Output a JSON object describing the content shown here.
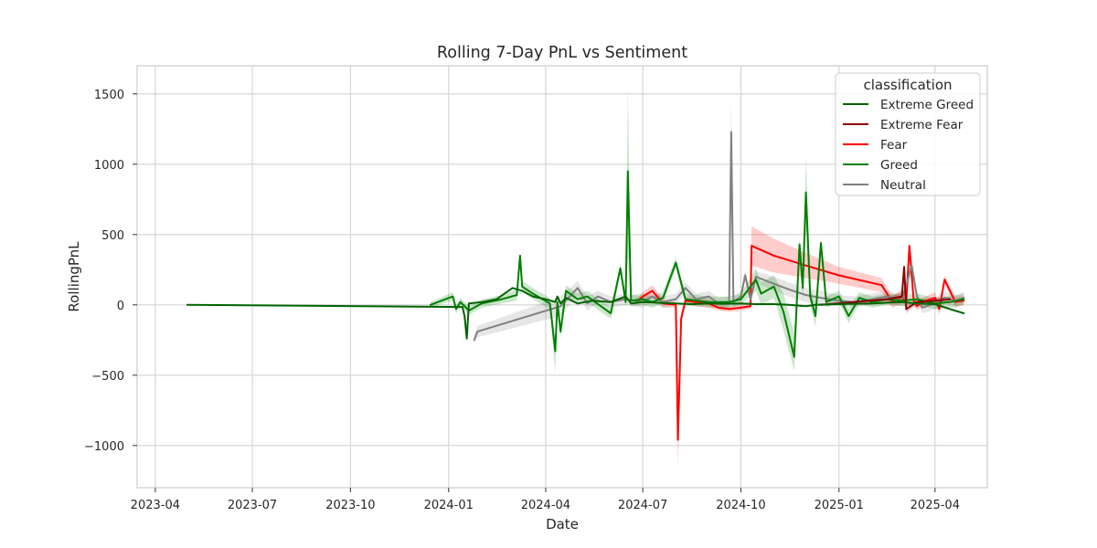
{
  "chart_data": {
    "type": "line",
    "title": "Rolling 7-Day PnL vs Sentiment",
    "xlabel": "Date",
    "ylabel": "RollingPnL",
    "xlim": [
      "2023-03-15",
      "2025-05-20"
    ],
    "ylim": [
      -1300,
      1700
    ],
    "x_ticks": [
      "2023-04",
      "2023-07",
      "2023-10",
      "2024-01",
      "2024-04",
      "2024-07",
      "2024-10",
      "2025-01",
      "2025-04"
    ],
    "x_tick_dates": [
      "2023-04-01",
      "2023-07-01",
      "2023-10-01",
      "2024-01-01",
      "2024-04-01",
      "2024-07-01",
      "2024-10-01",
      "2025-01-01",
      "2025-04-01"
    ],
    "y_ticks": [
      -1000,
      -500,
      0,
      500,
      1000,
      1500
    ],
    "y_tick_labels": [
      "−1000",
      "−500",
      "0",
      "500",
      "1000",
      "1500"
    ],
    "grid": true,
    "legend_placement": "top-right",
    "legend_title": "classification",
    "series": [
      {
        "name": "Extreme Greed",
        "color": "#006400",
        "x": [
          "2023-05-01",
          "2024-01-14",
          "2024-01-16",
          "2024-01-18",
          "2024-01-20",
          "2024-02-01",
          "2024-02-15",
          "2024-03-01",
          "2024-03-10",
          "2024-03-20",
          "2024-04-01",
          "2024-04-10",
          "2024-04-12",
          "2024-04-15",
          "2024-04-20",
          "2024-05-01",
          "2024-05-15",
          "2024-06-01",
          "2024-06-15",
          "2024-06-20",
          "2024-07-01",
          "2024-07-15",
          "2024-08-01",
          "2024-08-15",
          "2024-09-01",
          "2024-09-15",
          "2024-10-01",
          "2024-10-15",
          "2024-11-01",
          "2024-11-15",
          "2024-12-01",
          "2024-12-10",
          "2025-01-01",
          "2025-02-01",
          "2025-03-01",
          "2025-03-15",
          "2025-04-01",
          "2025-04-15",
          "2025-04-28"
        ],
        "y": [
          0,
          -15,
          -80,
          -240,
          10,
          20,
          40,
          120,
          100,
          60,
          40,
          20,
          60,
          10,
          50,
          10,
          30,
          20,
          60,
          10,
          20,
          15,
          10,
          5,
          10,
          8,
          10,
          5,
          5,
          0,
          -10,
          0,
          5,
          10,
          20,
          10,
          5,
          -30,
          -60
        ]
      },
      {
        "name": "Extreme Fear",
        "color": "#8b0000",
        "x": [
          "2024-12-15",
          "2025-01-15",
          "2025-02-15",
          "2025-03-01",
          "2025-03-03",
          "2025-03-05",
          "2025-03-15",
          "2025-04-01",
          "2025-04-15"
        ],
        "y": [
          0,
          20,
          40,
          60,
          270,
          -30,
          20,
          30,
          40
        ],
        "ci_upper": [
          10,
          30,
          60,
          90,
          300,
          0,
          40,
          50,
          60
        ],
        "ci_lower": [
          -10,
          10,
          20,
          30,
          240,
          -60,
          0,
          10,
          20
        ]
      },
      {
        "name": "Fear",
        "color": "#ff0000",
        "x": [
          "2024-06-25",
          "2024-07-01",
          "2024-07-10",
          "2024-07-20",
          "2024-08-01",
          "2024-08-03",
          "2024-08-06",
          "2024-08-10",
          "2024-08-20",
          "2024-09-01",
          "2024-09-10",
          "2024-09-20",
          "2024-10-01",
          "2024-10-10",
          "2024-10-11",
          "2024-11-01",
          "2024-12-01",
          "2025-01-01",
          "2025-02-10",
          "2025-02-20",
          "2025-03-01",
          "2025-03-05",
          "2025-03-08",
          "2025-03-12",
          "2025-03-15",
          "2025-03-20",
          "2025-04-01",
          "2025-04-05",
          "2025-04-10",
          "2025-04-20",
          "2025-04-28"
        ],
        "y": [
          20,
          60,
          100,
          10,
          0,
          -960,
          -100,
          30,
          20,
          10,
          -20,
          -30,
          -20,
          -10,
          420,
          350,
          280,
          210,
          140,
          20,
          60,
          10,
          420,
          30,
          -10,
          20,
          50,
          -30,
          180,
          20,
          30
        ],
        "ci_upper": [
          40,
          90,
          140,
          40,
          20,
          -750,
          -60,
          60,
          50,
          40,
          0,
          -10,
          0,
          10,
          560,
          470,
          370,
          270,
          190,
          60,
          110,
          40,
          460,
          60,
          20,
          50,
          90,
          10,
          210,
          60,
          60
        ],
        "ci_lower": [
          0,
          30,
          60,
          -20,
          -20,
          -1180,
          -140,
          0,
          -10,
          -20,
          -40,
          -50,
          -40,
          -30,
          280,
          230,
          190,
          150,
          90,
          -20,
          10,
          -20,
          380,
          0,
          -40,
          -10,
          10,
          -70,
          150,
          -20,
          0
        ]
      },
      {
        "name": "Greed",
        "color": "#008000",
        "x": [
          "2023-12-15",
          "2024-01-05",
          "2024-01-08",
          "2024-01-12",
          "2024-01-20",
          "2024-02-01",
          "2024-02-20",
          "2024-03-05",
          "2024-03-08",
          "2024-03-10",
          "2024-03-20",
          "2024-04-05",
          "2024-04-10",
          "2024-04-12",
          "2024-04-15",
          "2024-04-20",
          "2024-05-01",
          "2024-05-10",
          "2024-06-01",
          "2024-06-10",
          "2024-06-15",
          "2024-06-17",
          "2024-06-20",
          "2024-07-01",
          "2024-07-10",
          "2024-07-20",
          "2024-08-01",
          "2024-08-10",
          "2024-09-01",
          "2024-09-20",
          "2024-10-01",
          "2024-10-15",
          "2024-10-20",
          "2024-11-01",
          "2024-11-10",
          "2024-11-20",
          "2024-11-25",
          "2024-11-28",
          "2024-12-01",
          "2024-12-05",
          "2024-12-10",
          "2024-12-15",
          "2024-12-20",
          "2025-01-01",
          "2025-01-10",
          "2025-01-20",
          "2025-02-01",
          "2025-02-15",
          "2025-03-01",
          "2025-03-15",
          "2025-04-01",
          "2025-04-15",
          "2025-04-28"
        ],
        "y": [
          0,
          60,
          -30,
          20,
          -40,
          10,
          40,
          70,
          350,
          130,
          80,
          10,
          -330,
          20,
          -190,
          100,
          40,
          60,
          -60,
          260,
          20,
          950,
          30,
          40,
          20,
          50,
          300,
          40,
          20,
          20,
          40,
          180,
          80,
          130,
          -50,
          -370,
          430,
          120,
          800,
          60,
          -80,
          440,
          20,
          60,
          -80,
          50,
          20,
          40,
          30,
          40,
          10,
          20,
          40
        ],
        "ci_upper": [
          20,
          90,
          0,
          50,
          -10,
          40,
          70,
          110,
          360,
          170,
          120,
          50,
          -250,
          60,
          -140,
          140,
          80,
          100,
          -20,
          300,
          60,
          1560,
          70,
          80,
          60,
          90,
          340,
          80,
          60,
          60,
          80,
          260,
          160,
          210,
          80,
          -200,
          480,
          200,
          1050,
          120,
          0,
          480,
          60,
          100,
          -30,
          90,
          60,
          80,
          70,
          80,
          50,
          60,
          80
        ],
        "ci_lower": [
          -20,
          30,
          -60,
          -10,
          -70,
          -20,
          10,
          30,
          320,
          90,
          40,
          -30,
          -490,
          -20,
          -240,
          60,
          0,
          20,
          -100,
          220,
          -20,
          340,
          -10,
          0,
          -20,
          10,
          260,
          0,
          -20,
          -20,
          0,
          100,
          0,
          50,
          -180,
          -470,
          380,
          40,
          550,
          0,
          -160,
          400,
          -20,
          20,
          -130,
          10,
          -20,
          0,
          -10,
          0,
          -30,
          -20,
          0
        ]
      },
      {
        "name": "Neutral",
        "color": "#808080",
        "x": [
          "2024-01-25",
          "2024-01-28",
          "2024-04-15",
          "2024-05-01",
          "2024-05-10",
          "2024-05-20",
          "2024-06-01",
          "2024-06-15",
          "2024-07-01",
          "2024-07-10",
          "2024-07-20",
          "2024-08-01",
          "2024-08-10",
          "2024-08-20",
          "2024-09-01",
          "2024-09-10",
          "2024-09-20",
          "2024-09-22",
          "2024-09-24",
          "2024-10-01",
          "2024-10-05",
          "2024-10-10",
          "2024-10-15",
          "2024-11-01",
          "2024-11-15",
          "2024-12-01",
          "2024-12-15",
          "2025-01-01",
          "2025-01-15",
          "2025-02-01",
          "2025-02-15",
          "2025-03-01",
          "2025-03-10",
          "2025-03-15",
          "2025-03-20",
          "2025-04-01",
          "2025-04-10",
          "2025-04-20",
          "2025-04-28"
        ],
        "y": [
          -250,
          -190,
          -10,
          120,
          10,
          60,
          20,
          40,
          20,
          60,
          20,
          40,
          120,
          40,
          60,
          10,
          20,
          1230,
          20,
          60,
          210,
          40,
          200,
          150,
          110,
          70,
          50,
          30,
          20,
          40,
          60,
          30,
          280,
          60,
          -20,
          10,
          50,
          30,
          50
        ],
        "ci_upper": [
          -230,
          -150,
          60,
          170,
          60,
          100,
          60,
          80,
          60,
          100,
          60,
          80,
          160,
          80,
          100,
          50,
          60,
          1500,
          60,
          100,
          250,
          80,
          240,
          200,
          160,
          120,
          100,
          70,
          60,
          80,
          100,
          70,
          350,
          100,
          20,
          50,
          90,
          70,
          90
        ],
        "ci_lower": [
          -270,
          -230,
          -80,
          70,
          -40,
          20,
          -20,
          0,
          -20,
          20,
          -20,
          0,
          80,
          0,
          20,
          -30,
          -20,
          960,
          -20,
          20,
          170,
          0,
          160,
          100,
          60,
          20,
          0,
          -10,
          -20,
          0,
          20,
          -10,
          210,
          20,
          -60,
          -30,
          10,
          -10,
          10
        ]
      }
    ]
  }
}
